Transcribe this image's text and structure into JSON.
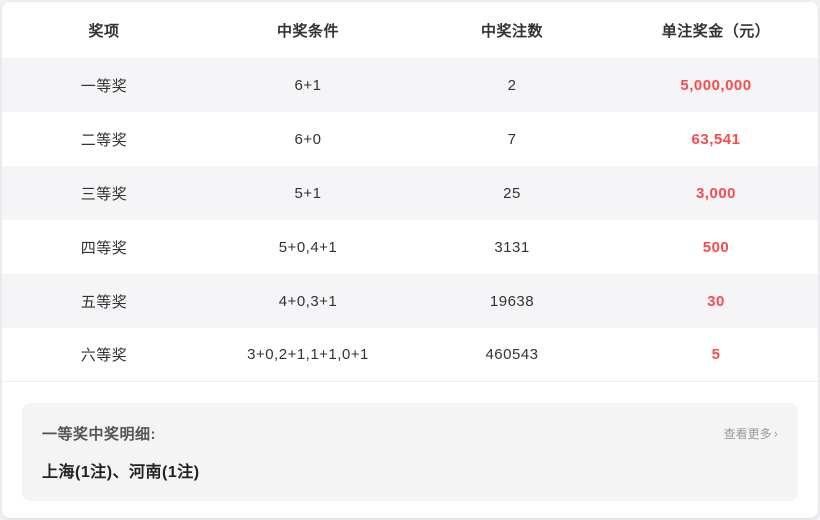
{
  "table": {
    "columns": [
      "奖项",
      "中奖条件",
      "中奖注数",
      "单注奖金（元）"
    ],
    "row_fields": [
      "prize",
      "condition",
      "count",
      "amount"
    ],
    "rows": [
      {
        "prize": "一等奖",
        "condition": "6+1",
        "count": "2",
        "amount": "5,000,000"
      },
      {
        "prize": "二等奖",
        "condition": "6+0",
        "count": "7",
        "amount": "63,541"
      },
      {
        "prize": "三等奖",
        "condition": "5+1",
        "count": "25",
        "amount": "3,000"
      },
      {
        "prize": "四等奖",
        "condition": "5+0,4+1",
        "count": "3131",
        "amount": "500"
      },
      {
        "prize": "五等奖",
        "condition": "4+0,3+1",
        "count": "19638",
        "amount": "30"
      },
      {
        "prize": "六等奖",
        "condition": "3+0,2+1,1+1,0+1",
        "count": "460543",
        "amount": "5"
      }
    ]
  },
  "footer": {
    "title": "一等奖中奖明细:",
    "detail": "上海(1注)、河南(1注)",
    "more_label": "查看更多",
    "chevron": "›"
  },
  "colors": {
    "amount_red": "#fa4b4b",
    "row_stripe": "#f5f5f8",
    "panel_bg": "#f4f4f5",
    "text_dark": "#333333",
    "more_grey": "#999999"
  }
}
